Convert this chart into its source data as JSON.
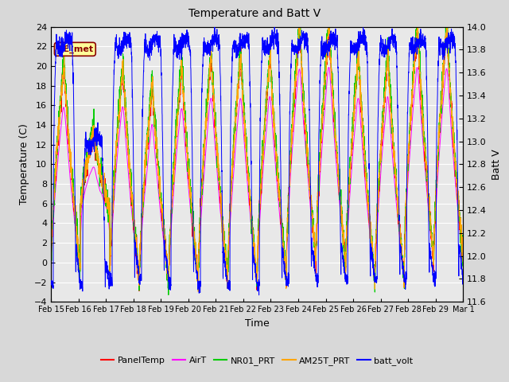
{
  "title": "Temperature and Batt V",
  "xlabel": "Time",
  "ylabel_left": "Temperature (C)",
  "ylabel_right": "Batt V",
  "ylim_left": [
    -4,
    24
  ],
  "ylim_right": [
    11.6,
    14.0
  ],
  "yticks_left": [
    -4,
    -2,
    0,
    2,
    4,
    6,
    8,
    10,
    12,
    14,
    16,
    18,
    20,
    22,
    24
  ],
  "yticks_right": [
    11.6,
    11.8,
    12.0,
    12.2,
    12.4,
    12.6,
    12.8,
    13.0,
    13.2,
    13.4,
    13.6,
    13.8,
    14.0
  ],
  "annotation_text": "EE_met",
  "annotation_color": "#8B0000",
  "annotation_bg": "#FFFF99",
  "bg_color": "#D8D8D8",
  "plot_bg": "#E8E8E8",
  "grid_color": "#FFFFFF",
  "colors": {
    "PanelTemp": "#FF0000",
    "AirT": "#FF00FF",
    "NR01_PRT": "#00CC00",
    "AM25T_PRT": "#FFA500",
    "batt_volt": "#0000FF"
  },
  "legend_labels": [
    "PanelTemp",
    "AirT",
    "NR01_PRT",
    "AM25T_PRT",
    "batt_volt"
  ],
  "xtick_labels": [
    "Feb 15",
    "Feb 16",
    "Feb 17",
    "Feb 18",
    "Feb 19",
    "Feb 20",
    "Feb 21",
    "Feb 22",
    "Feb 23",
    "Feb 24",
    "Feb 25",
    "Feb 26",
    "Feb 27",
    "Feb 28",
    "Feb 29",
    "Mar 1"
  ],
  "n_points": 3360
}
